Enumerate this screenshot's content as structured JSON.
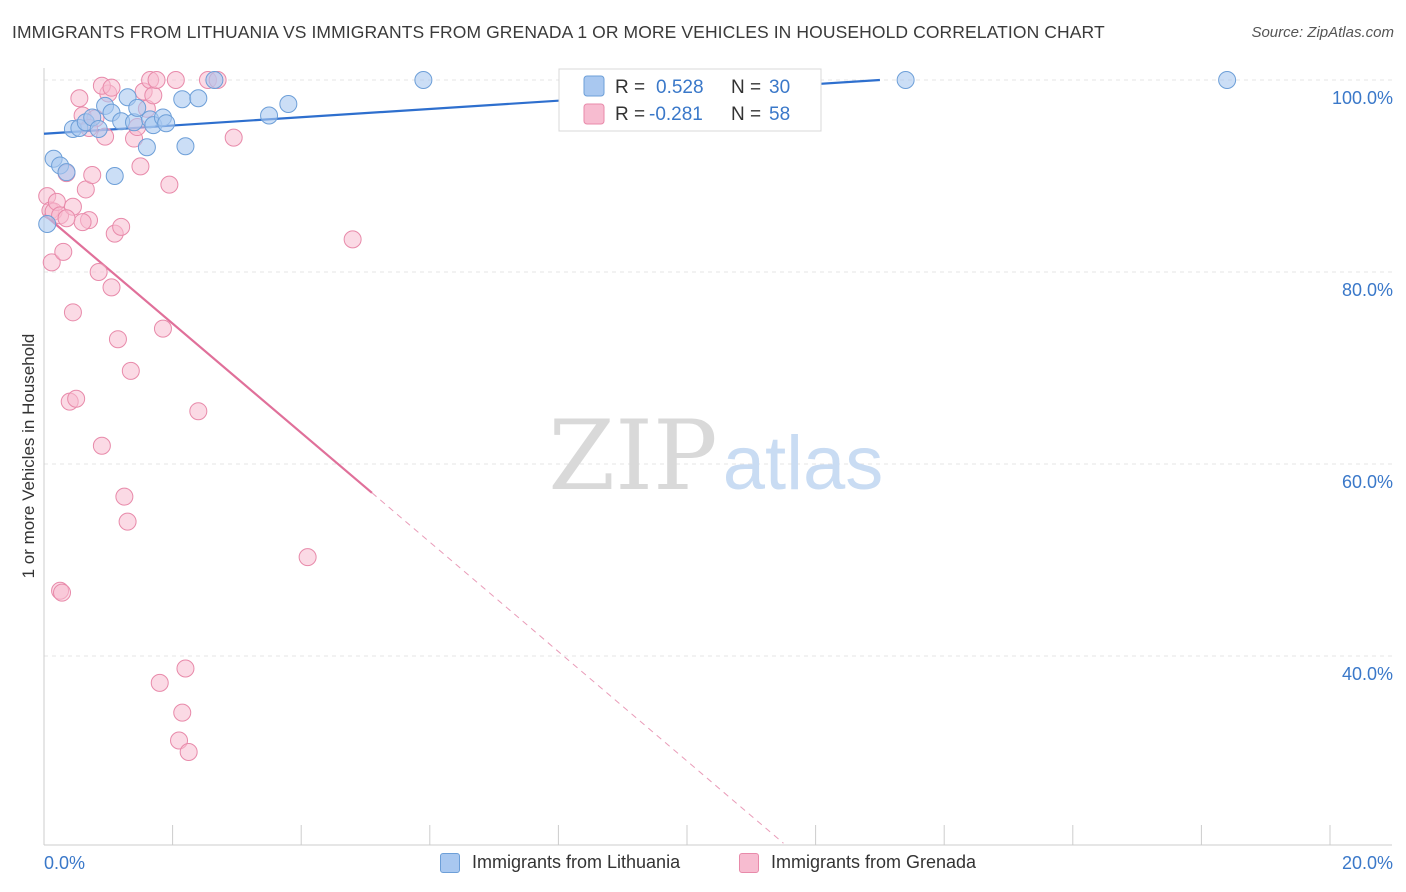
{
  "title": "IMMIGRANTS FROM LITHUANIA VS IMMIGRANTS FROM GRENADA 1 OR MORE VEHICLES IN HOUSEHOLD CORRELATION CHART",
  "source": "Source: ZipAtlas.com",
  "watermark": {
    "zip": "ZIP",
    "atlas": "atlas"
  },
  "legend_top": [
    {
      "r_label": "R =",
      "r_value": "0.528",
      "n_label": "N =",
      "n_value": "30"
    },
    {
      "r_label": "R =",
      "r_value": "-0.281",
      "n_label": "N =",
      "n_value": "58"
    }
  ],
  "legend_bottom": [
    "Immigrants from Lithuania",
    "Immigrants from Grenada"
  ],
  "colors": {
    "blue_fill": "#a9c8f0",
    "blue_stroke": "#6d9fd8",
    "blue_line": "#2e6fce",
    "pink_fill": "#f7bcd0",
    "pink_stroke": "#e88aaa",
    "pink_line": "#e0709a",
    "axis_text": "#3a78c9",
    "grid": "#e4e4e4"
  },
  "chart_data": {
    "type": "scatter",
    "title": "IMMIGRANTS FROM LITHUANIA VS IMMIGRANTS FROM GRENADA 1 OR MORE VEHICLES IN HOUSEHOLD CORRELATION CHART",
    "xlabel": "",
    "ylabel": "1 or more Vehicles in Household",
    "x_tick_labels": [
      "0.0%",
      "20.0%"
    ],
    "y_tick_labels": [
      "100.0%",
      "80.0%",
      "60.0%",
      "40.0%"
    ],
    "xlim": [
      0,
      20
    ],
    "ylim": [
      20,
      102
    ],
    "grid": true,
    "legend_position": "top-center",
    "series": [
      {
        "name": "Immigrants from Lithuania",
        "r": 0.528,
        "n": 30,
        "trend": {
          "x0": 0,
          "y0": 94.4,
          "x1": 13.0,
          "y1": 100.0
        },
        "points": [
          [
            0.15,
            91.8
          ],
          [
            0.25,
            91.1
          ],
          [
            0.35,
            90.4
          ],
          [
            0.45,
            94.9
          ],
          [
            0.55,
            95.0
          ],
          [
            0.65,
            95.6
          ],
          [
            0.75,
            96.1
          ],
          [
            0.85,
            94.9
          ],
          [
            0.95,
            97.3
          ],
          [
            1.05,
            96.6
          ],
          [
            1.1,
            90.0
          ],
          [
            1.2,
            95.7
          ],
          [
            1.3,
            98.2
          ],
          [
            1.4,
            95.6
          ],
          [
            1.45,
            97.1
          ],
          [
            1.6,
            93.0
          ],
          [
            1.65,
            95.9
          ],
          [
            1.7,
            95.3
          ],
          [
            1.85,
            96.1
          ],
          [
            1.9,
            95.5
          ],
          [
            2.15,
            98.0
          ],
          [
            2.2,
            93.1
          ],
          [
            2.4,
            98.1
          ],
          [
            2.65,
            100.0
          ],
          [
            3.5,
            96.3
          ],
          [
            3.8,
            97.5
          ],
          [
            5.9,
            100.0
          ],
          [
            13.4,
            100.0
          ],
          [
            18.4,
            100.0
          ],
          [
            0.05,
            85.0
          ]
        ]
      },
      {
        "name": "Immigrants from Grenada",
        "r": -0.281,
        "n": 58,
        "trend": {
          "x0": 0,
          "y0": 86.0,
          "x1": 5.1,
          "y1": 57.0,
          "dash_x1": 11.5,
          "dash_y1": 20.5
        },
        "points": [
          [
            0.05,
            87.9
          ],
          [
            0.1,
            86.4
          ],
          [
            0.12,
            81.0
          ],
          [
            0.15,
            86.3
          ],
          [
            0.2,
            87.3
          ],
          [
            0.25,
            85.9
          ],
          [
            0.3,
            82.1
          ],
          [
            0.35,
            90.3
          ],
          [
            0.4,
            66.5
          ],
          [
            0.45,
            75.8
          ],
          [
            0.5,
            66.8
          ],
          [
            0.55,
            98.1
          ],
          [
            0.6,
            96.3
          ],
          [
            0.65,
            88.6
          ],
          [
            0.7,
            85.4
          ],
          [
            0.75,
            90.1
          ],
          [
            0.8,
            96.0
          ],
          [
            0.85,
            80.0
          ],
          [
            0.9,
            61.9
          ],
          [
            0.95,
            94.1
          ],
          [
            1.0,
            98.6
          ],
          [
            1.05,
            78.4
          ],
          [
            1.1,
            84.0
          ],
          [
            0.7,
            95.0
          ],
          [
            1.15,
            73.0
          ],
          [
            1.2,
            84.7
          ],
          [
            1.25,
            56.6
          ],
          [
            1.3,
            54.0
          ],
          [
            1.35,
            69.7
          ],
          [
            1.4,
            93.9
          ],
          [
            1.45,
            95.1
          ],
          [
            1.5,
            91.0
          ],
          [
            1.55,
            98.8
          ],
          [
            1.6,
            97.0
          ],
          [
            1.65,
            100.0
          ],
          [
            1.7,
            98.4
          ],
          [
            1.75,
            100.0
          ],
          [
            1.8,
            37.2
          ],
          [
            1.85,
            74.1
          ],
          [
            1.95,
            89.1
          ],
          [
            2.05,
            100.0
          ],
          [
            2.1,
            31.2
          ],
          [
            2.15,
            34.1
          ],
          [
            2.2,
            38.7
          ],
          [
            2.25,
            30.0
          ],
          [
            2.4,
            65.5
          ],
          [
            2.55,
            100.0
          ],
          [
            2.7,
            100.0
          ],
          [
            2.95,
            94.0
          ],
          [
            4.1,
            50.3
          ],
          [
            4.8,
            83.4
          ],
          [
            0.25,
            46.8
          ],
          [
            0.28,
            46.6
          ],
          [
            0.9,
            99.4
          ],
          [
            0.45,
            86.8
          ],
          [
            1.05,
            99.2
          ],
          [
            0.6,
            85.2
          ],
          [
            0.35,
            85.6
          ]
        ]
      }
    ]
  }
}
